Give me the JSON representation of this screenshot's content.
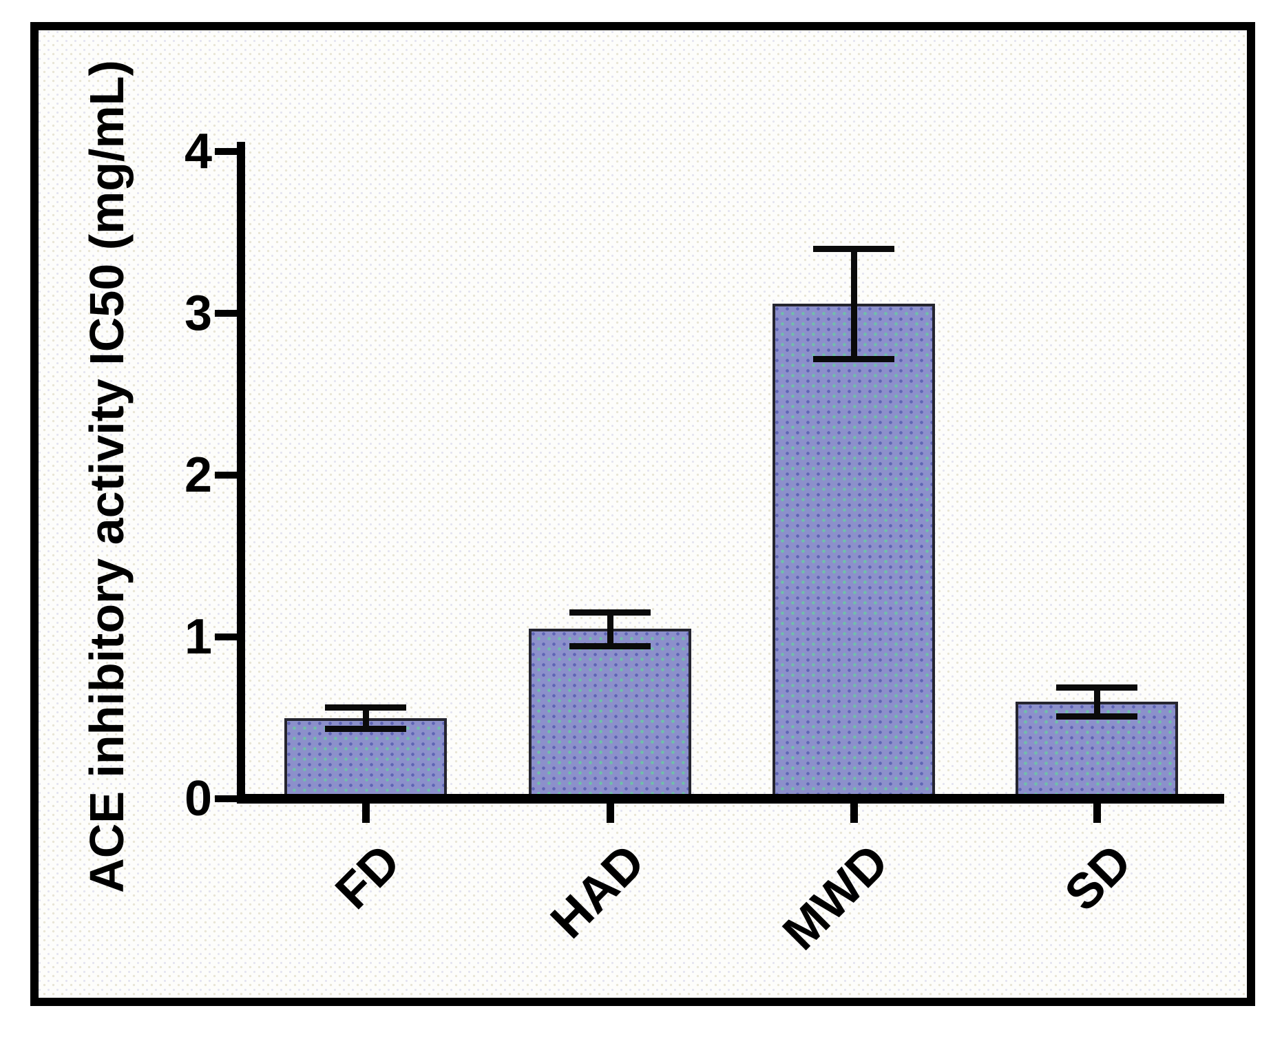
{
  "colors": {
    "frame_border": "#000000",
    "axis": "#000000",
    "text": "#000000",
    "page_background": "#ffffff",
    "plot_background": "#fdfdfb",
    "bar_fill": "#8c90cb",
    "bar_pattern_dot_teal": "#6ec1a9",
    "bar_pattern_dot_blue": "#5e64b5",
    "bar_border": "#25252f",
    "error_bar": "#0a0a0a"
  },
  "chart_data": {
    "type": "bar",
    "title": "",
    "xlabel": "",
    "ylabel": "ACE inhibitory activity IC50 (mg/mL)",
    "categories": [
      "FD",
      "HAD",
      "MWD",
      "SD"
    ],
    "values": [
      0.5,
      1.05,
      3.06,
      0.6
    ],
    "errors": [
      0.065,
      0.105,
      0.34,
      0.09
    ],
    "ylim": [
      0,
      4
    ],
    "yticks": [
      "0",
      "1",
      "2",
      "3",
      "4"
    ],
    "grid": false,
    "legend_position": "none",
    "error_bars": true,
    "bar_orientation": "vertical",
    "x_tick_label_rotation_deg": 45
  }
}
